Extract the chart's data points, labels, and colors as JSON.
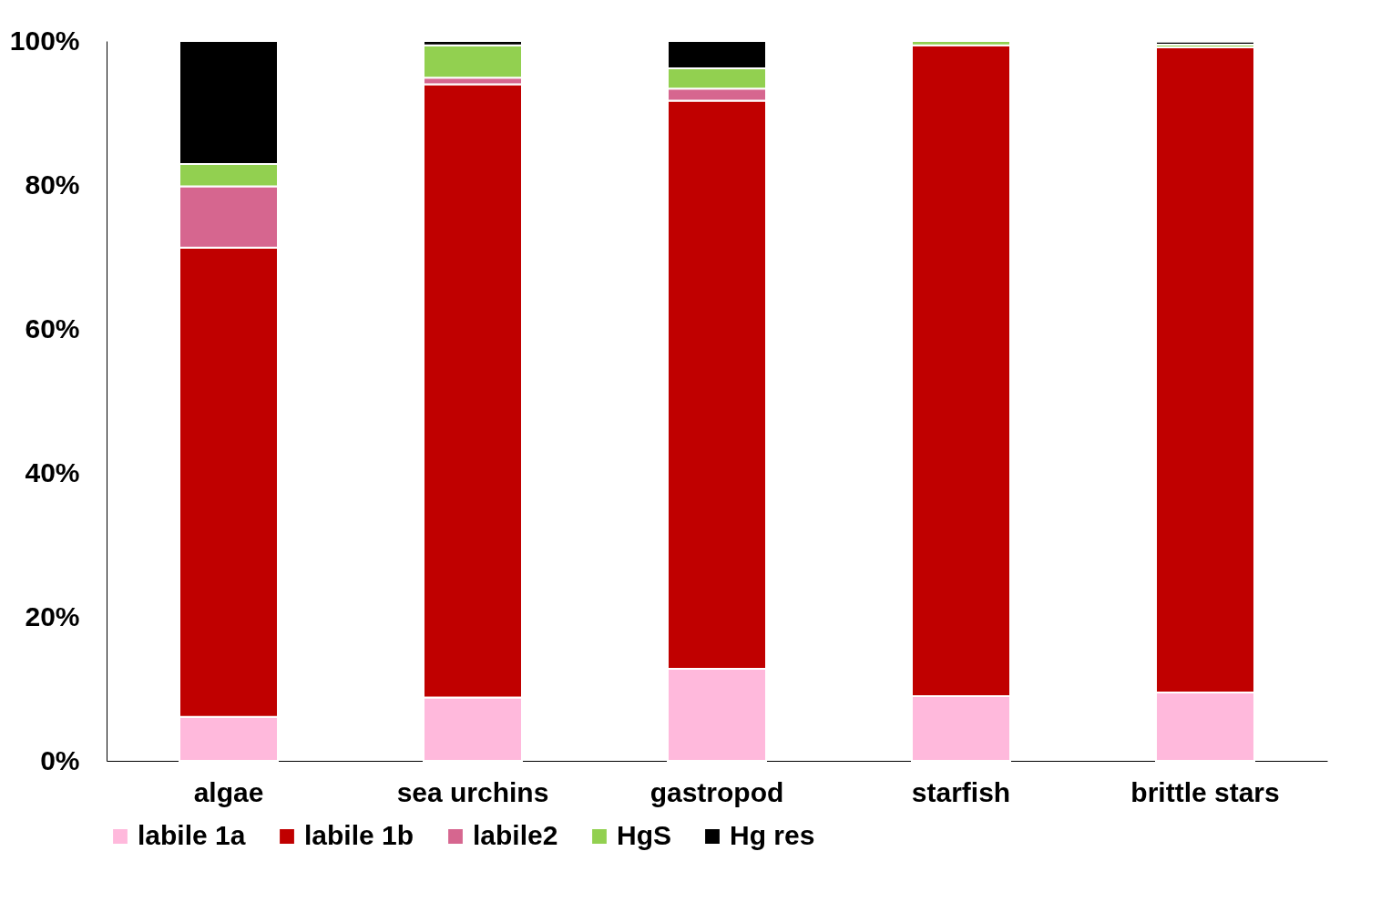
{
  "chart_data": {
    "type": "bar",
    "stacked": true,
    "categories": [
      "algae",
      "sea urchins",
      "gastropod",
      "starfish",
      "brittle stars"
    ],
    "series": [
      {
        "name": "labile 1a",
        "color": "#ffb9dc",
        "values": [
          6.1,
          8.8,
          12.8,
          9.0,
          9.5
        ]
      },
      {
        "name": "labile 1b",
        "color": "#c00000",
        "values": [
          65.2,
          85.2,
          78.9,
          90.4,
          89.6
        ]
      },
      {
        "name": "labile2",
        "color": "#d6668f",
        "values": [
          8.5,
          0.9,
          1.7,
          null,
          null
        ]
      },
      {
        "name": "HgS",
        "color": "#92d050",
        "values": [
          3.1,
          4.5,
          2.8,
          0.6,
          0.4
        ]
      },
      {
        "name": "Hg res",
        "color": "#000000",
        "values": [
          17.1,
          0.6,
          3.8,
          null,
          0.4
        ]
      }
    ],
    "ylim": [
      0,
      100
    ],
    "yticks": [
      {
        "value": 0,
        "label": "0%"
      },
      {
        "value": 20,
        "label": "20%"
      },
      {
        "value": 40,
        "label": "40%"
      },
      {
        "value": 60,
        "label": "60%"
      },
      {
        "value": 80,
        "label": "80%"
      },
      {
        "value": 100,
        "label": "100%"
      }
    ],
    "grid": false,
    "legend": "bottom"
  }
}
